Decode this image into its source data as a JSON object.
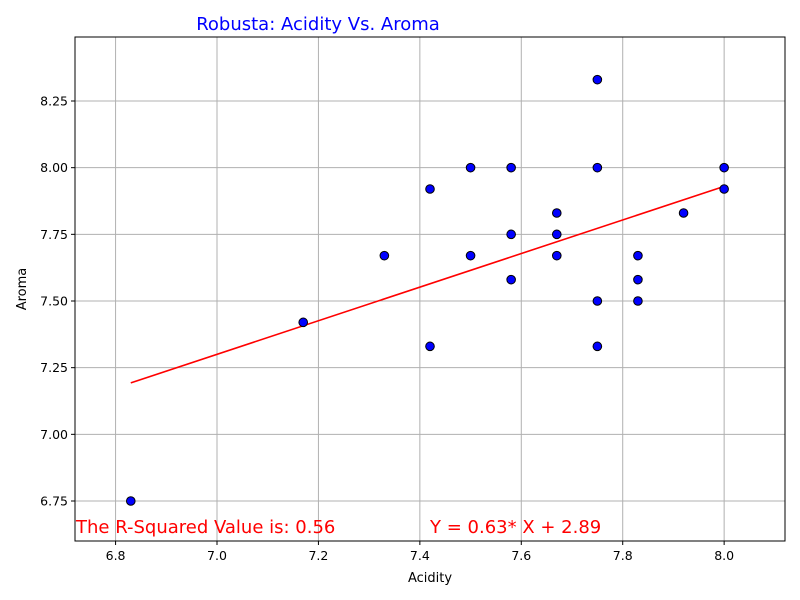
{
  "chart_data": {
    "type": "scatter",
    "title": "Robusta: Acidity Vs. Aroma",
    "xlabel": "Acidity",
    "ylabel": "Aroma",
    "xlim": [
      6.72,
      8.12
    ],
    "ylim": [
      6.6,
      8.49
    ],
    "xticks": [
      "6.8",
      "7.0",
      "7.2",
      "7.4",
      "7.6",
      "7.8",
      "8.0"
    ],
    "xtick_values": [
      6.8,
      7.0,
      7.2,
      7.4,
      7.6,
      7.8,
      8.0
    ],
    "yticks": [
      "6.75",
      "7.00",
      "7.25",
      "7.50",
      "7.75",
      "8.00",
      "8.25"
    ],
    "ytick_values": [
      6.75,
      7.0,
      7.25,
      7.5,
      7.75,
      8.0,
      8.25
    ],
    "grid": true,
    "points": [
      {
        "x": 6.83,
        "y": 6.75
      },
      {
        "x": 7.17,
        "y": 7.42
      },
      {
        "x": 7.33,
        "y": 7.67
      },
      {
        "x": 7.42,
        "y": 7.92
      },
      {
        "x": 7.42,
        "y": 7.33
      },
      {
        "x": 7.5,
        "y": 8.0
      },
      {
        "x": 7.5,
        "y": 7.67
      },
      {
        "x": 7.58,
        "y": 8.0
      },
      {
        "x": 7.58,
        "y": 7.75
      },
      {
        "x": 7.58,
        "y": 7.58
      },
      {
        "x": 7.67,
        "y": 7.83
      },
      {
        "x": 7.67,
        "y": 7.75
      },
      {
        "x": 7.67,
        "y": 7.67
      },
      {
        "x": 7.75,
        "y": 8.33
      },
      {
        "x": 7.75,
        "y": 8.0
      },
      {
        "x": 7.75,
        "y": 7.5
      },
      {
        "x": 7.75,
        "y": 7.33
      },
      {
        "x": 7.83,
        "y": 7.67
      },
      {
        "x": 7.83,
        "y": 7.58
      },
      {
        "x": 7.83,
        "y": 7.5
      },
      {
        "x": 7.92,
        "y": 7.83
      },
      {
        "x": 8.0,
        "y": 8.0
      },
      {
        "x": 8.0,
        "y": 7.92
      }
    ],
    "regression": {
      "slope": 0.63,
      "intercept": 2.89,
      "x_range": [
        6.83,
        8.0
      ]
    },
    "annotations": {
      "r_squared": "The R-Squared Value is: 0.56",
      "equation": "Y = 0.63* X + 2.89"
    },
    "colors": {
      "point_fill": "#0000ff",
      "point_edge": "#000000",
      "line": "#ff0000",
      "title": "#0000ff",
      "annotation": "#ff0000"
    }
  }
}
